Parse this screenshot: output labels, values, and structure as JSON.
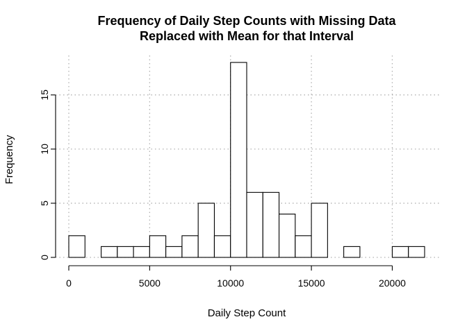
{
  "chart_data": {
    "type": "bar",
    "subtype": "histogram",
    "title_line1": "Frequency of Daily Step Counts with Missing Data",
    "title_line2": "Replaced with Mean for that Interval",
    "xlabel": "Daily Step Count",
    "ylabel": "Frequency",
    "xlim": [
      0,
      22000
    ],
    "ylim": [
      0,
      18
    ],
    "bin_width": 1000,
    "bins_start": [
      0,
      1000,
      2000,
      3000,
      4000,
      5000,
      6000,
      7000,
      8000,
      9000,
      10000,
      11000,
      12000,
      13000,
      14000,
      15000,
      16000,
      17000,
      18000,
      19000,
      20000,
      21000
    ],
    "values": [
      2,
      0,
      1,
      1,
      1,
      2,
      1,
      2,
      5,
      2,
      18,
      6,
      6,
      4,
      2,
      5,
      0,
      1,
      0,
      0,
      1,
      1
    ],
    "x_ticks": [
      0,
      5000,
      10000,
      15000,
      20000
    ],
    "x_tick_labels": [
      "0",
      "5000",
      "10000",
      "15000",
      "20000"
    ],
    "y_ticks": [
      0,
      5,
      10,
      15
    ],
    "y_tick_labels": [
      "0",
      "5",
      "10",
      "15"
    ],
    "grid": true,
    "grid_style": "dotted",
    "bar_fill": "#ffffff",
    "bar_stroke": "#000000",
    "grid_color": "#b0b0b0"
  }
}
